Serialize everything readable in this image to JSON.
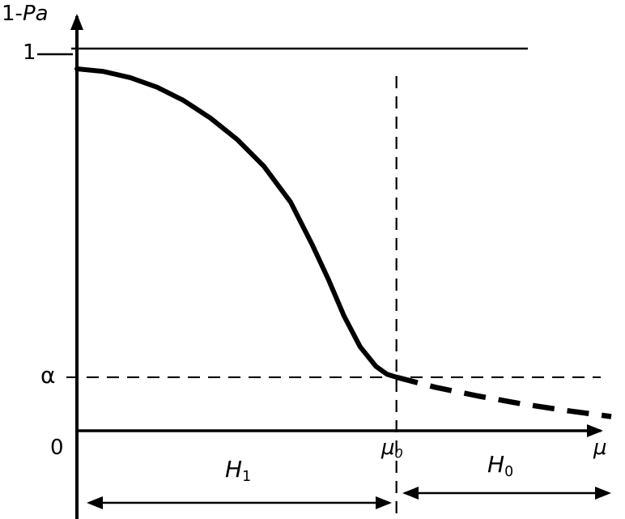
{
  "colors": {
    "ink": "#000000",
    "background": "#ffffff"
  },
  "labels": {
    "y_title_prefix": "1-",
    "y_title_italic": "Pa",
    "y_tick_top": "1",
    "y_tick_alpha": "α",
    "x_origin": "0",
    "mu0_base": "μ",
    "mu0_sub": "0",
    "x_axis_title": "μ",
    "h1_base": "H",
    "h1_sub": "1",
    "h0_base": "H",
    "h0_sub": "0"
  },
  "chart_data": {
    "type": "line",
    "title": "",
    "xlabel": "μ",
    "ylabel": "1-Pa",
    "x_axis": {
      "origin_label": "0",
      "tick_labels": [
        "μ0"
      ],
      "arrow_label": "μ",
      "numeric_scale": false
    },
    "y_axis": {
      "tick_labels": [
        "1",
        "α"
      ],
      "ylim": [
        0,
        1
      ],
      "numeric_scale": false
    },
    "grid": false,
    "legend": false,
    "reference_levels": {
      "one": 1.0,
      "alpha": 0.14,
      "mu0_x": 0.598
    },
    "reference_lines": [
      {
        "axis": "y",
        "value": 1.0,
        "style": "solid",
        "label": "1"
      },
      {
        "axis": "y",
        "value": 0.14,
        "style": "dashed",
        "label": "α"
      },
      {
        "axis": "x",
        "value": 0.598,
        "style": "dashed",
        "label": "μ0"
      }
    ],
    "regions": [
      {
        "label": "H1",
        "from_x": 0.0,
        "to_x": 0.598
      },
      {
        "label": "H0",
        "from_x": 0.598,
        "to_x": 1.0
      }
    ],
    "series": [
      {
        "name": "1-Pa curve for μ ≤ μ0 (H1 region)",
        "style": "solid",
        "points": [
          [
            0.0,
            0.947
          ],
          [
            0.05,
            0.94
          ],
          [
            0.1,
            0.924
          ],
          [
            0.15,
            0.899
          ],
          [
            0.2,
            0.864
          ],
          [
            0.25,
            0.818
          ],
          [
            0.3,
            0.762
          ],
          [
            0.35,
            0.692
          ],
          [
            0.4,
            0.598
          ],
          [
            0.44,
            0.488
          ],
          [
            0.47,
            0.398
          ],
          [
            0.5,
            0.3
          ],
          [
            0.53,
            0.22
          ],
          [
            0.56,
            0.168
          ],
          [
            0.58,
            0.148
          ],
          [
            0.598,
            0.14
          ]
        ]
      },
      {
        "name": "1-Pa curve extension for μ > μ0 (H0 region)",
        "style": "dashed",
        "points": [
          [
            0.598,
            0.14
          ],
          [
            0.67,
            0.114
          ],
          [
            0.75,
            0.091
          ],
          [
            0.83,
            0.071
          ],
          [
            0.91,
            0.054
          ],
          [
            1.0,
            0.037
          ]
        ]
      }
    ]
  }
}
